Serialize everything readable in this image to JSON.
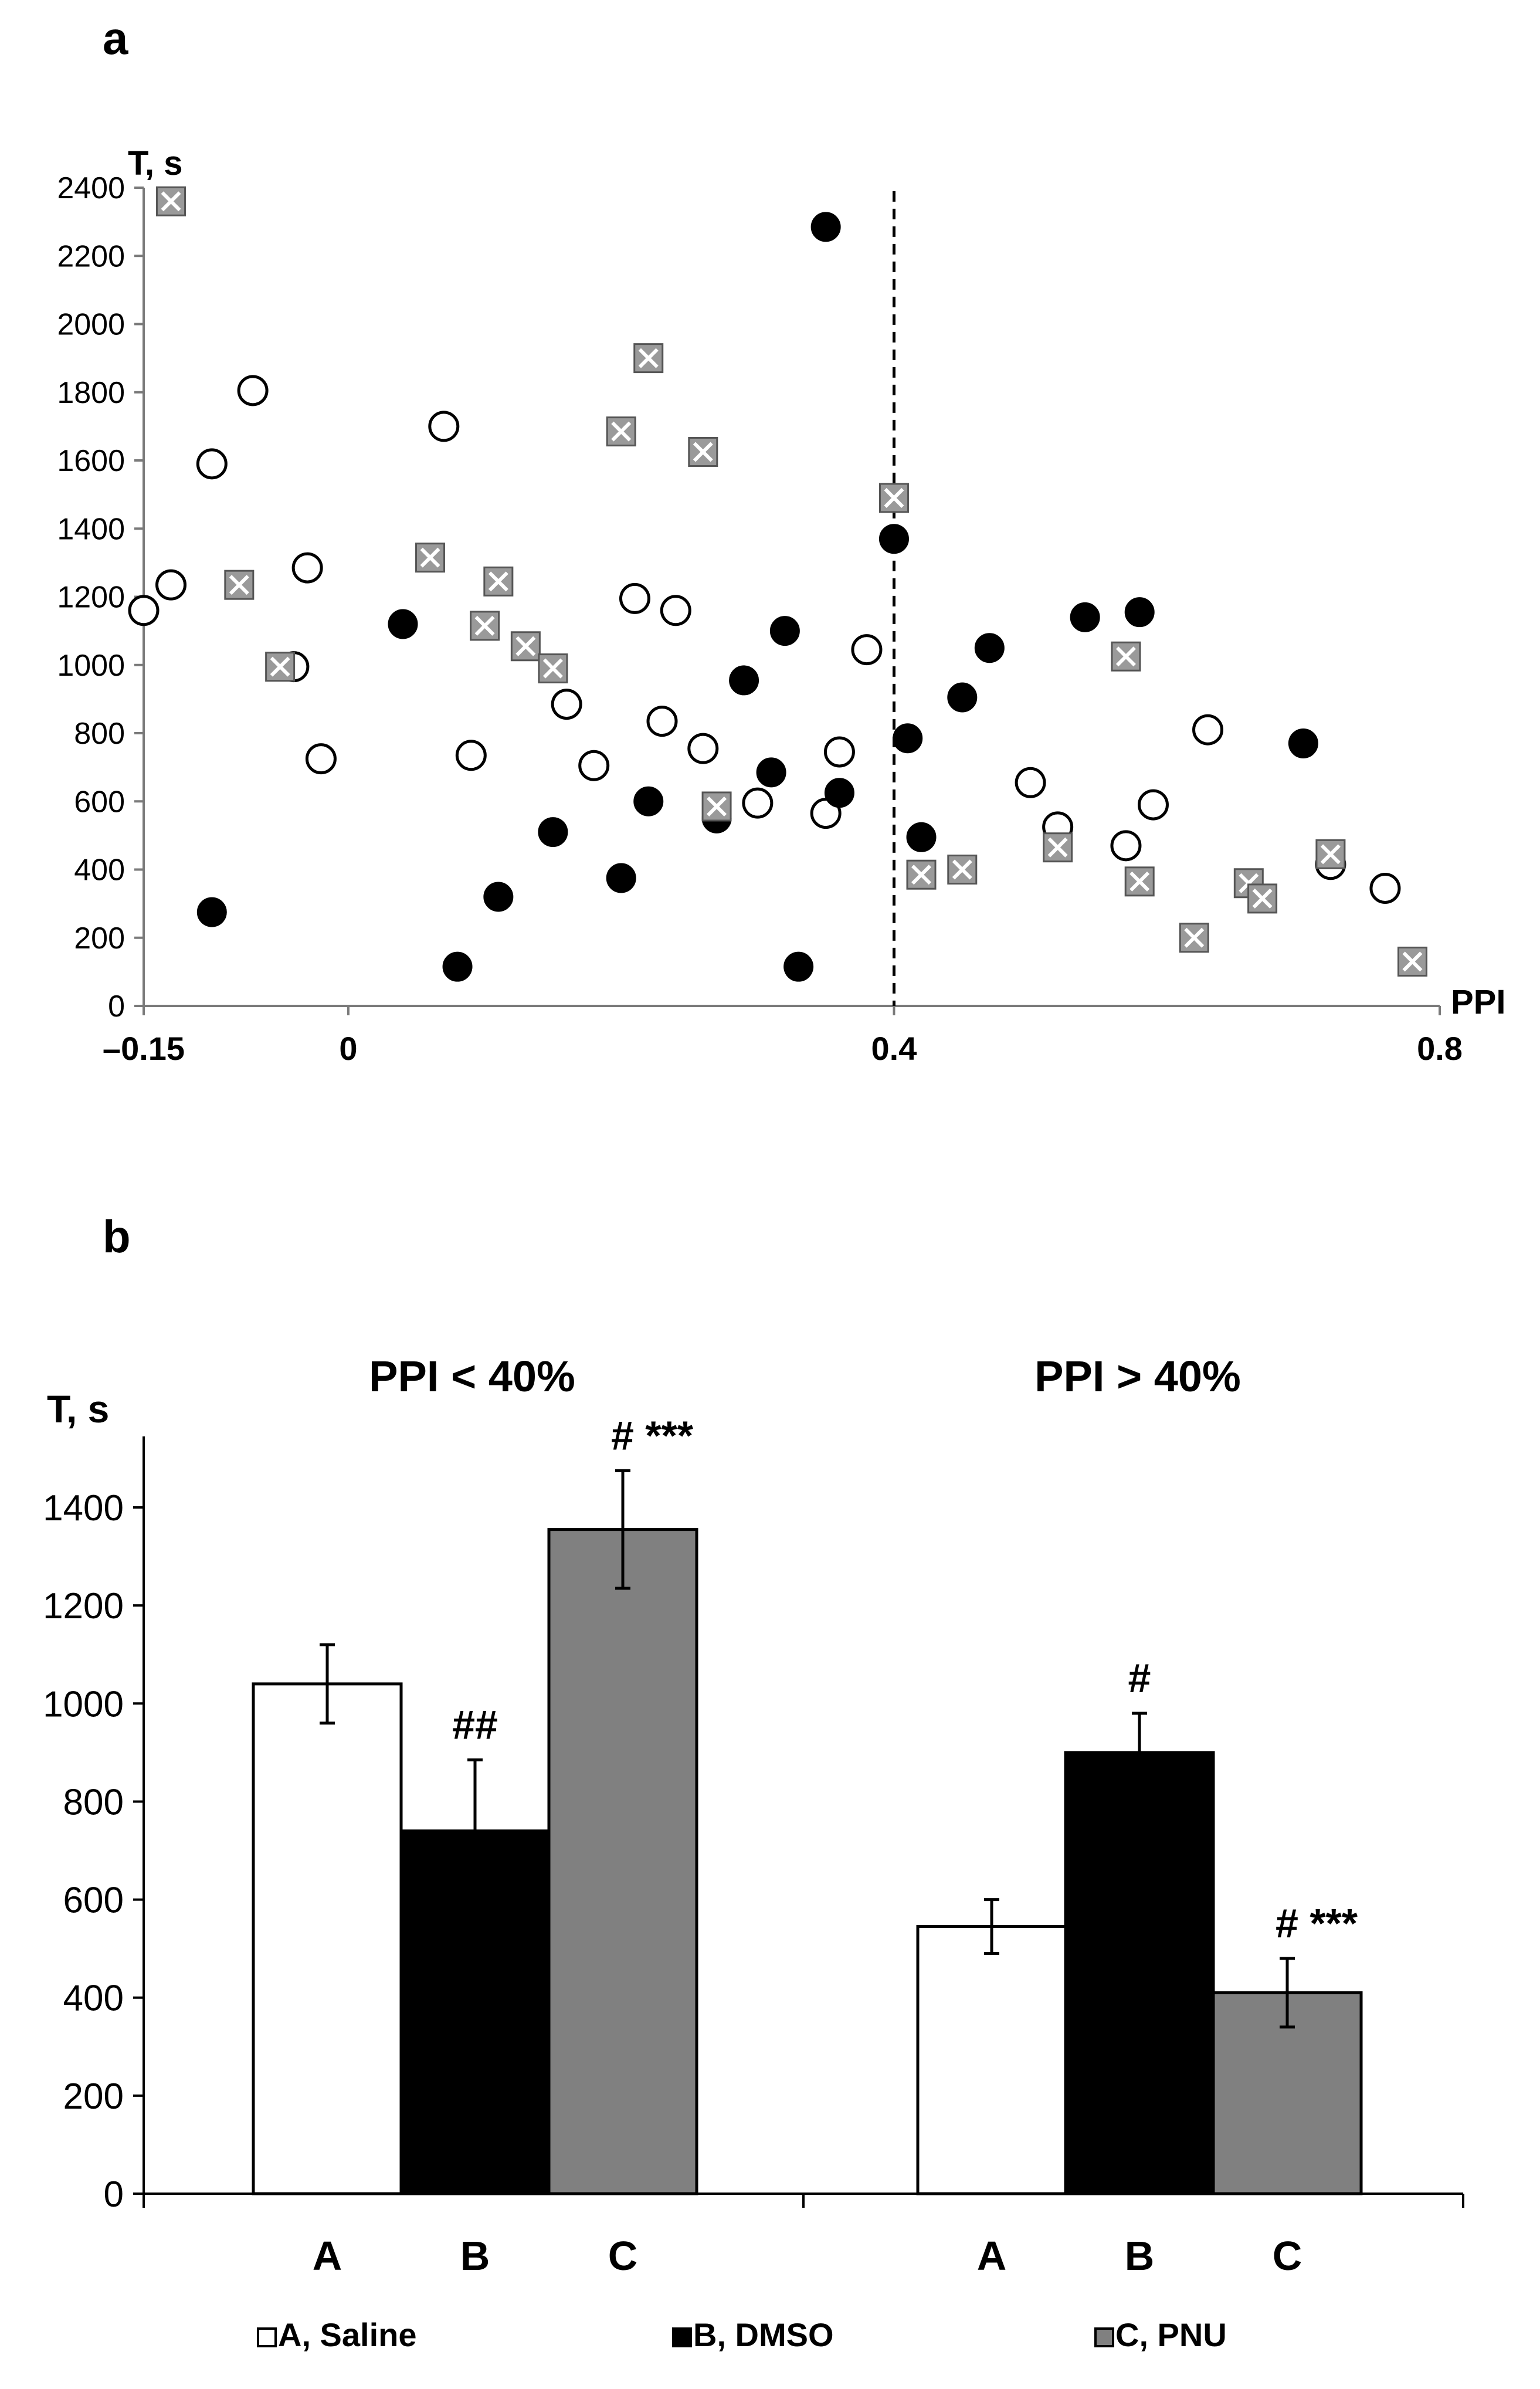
{
  "chart_data": [
    {
      "panel": "a",
      "type": "scatter",
      "ylabel": "T, s",
      "xlabel": "PPI",
      "xlim": [
        -0.15,
        0.8
      ],
      "ylim": [
        0,
        2400
      ],
      "x_ticks": [
        "–0.15",
        "0",
        "0.4",
        "0.8"
      ],
      "x_tick_values": [
        -0.15,
        0,
        0.4,
        0.8
      ],
      "y_ticks": [
        0,
        200,
        400,
        600,
        800,
        1000,
        1200,
        1400,
        1600,
        1800,
        2000,
        2200,
        2400
      ],
      "threshold_x": 0.4,
      "series": [
        {
          "name": "A, Saline",
          "marker": "open-circle",
          "points": [
            [
              -0.15,
              1160
            ],
            [
              -0.13,
              1235
            ],
            [
              -0.1,
              1590
            ],
            [
              -0.07,
              1805
            ],
            [
              -0.04,
              995
            ],
            [
              -0.03,
              1285
            ],
            [
              -0.02,
              725
            ],
            [
              0.07,
              1700
            ],
            [
              0.09,
              735
            ],
            [
              0.16,
              885
            ],
            [
              0.18,
              705
            ],
            [
              0.21,
              1195
            ],
            [
              0.23,
              835
            ],
            [
              0.24,
              1160
            ],
            [
              0.26,
              755
            ],
            [
              0.3,
              595
            ],
            [
              0.35,
              565
            ],
            [
              0.36,
              745
            ],
            [
              0.38,
              1045
            ],
            [
              0.5,
              655
            ],
            [
              0.52,
              525
            ],
            [
              0.57,
              470
            ],
            [
              0.59,
              590
            ],
            [
              0.63,
              810
            ],
            [
              0.72,
              415
            ],
            [
              0.76,
              345
            ]
          ]
        },
        {
          "name": "B, DMSO",
          "marker": "filled-circle",
          "points": [
            [
              -0.1,
              275
            ],
            [
              0.04,
              1120
            ],
            [
              0.08,
              115
            ],
            [
              0.11,
              320
            ],
            [
              0.15,
              510
            ],
            [
              0.2,
              375
            ],
            [
              0.22,
              600
            ],
            [
              0.27,
              550
            ],
            [
              0.29,
              955
            ],
            [
              0.31,
              685
            ],
            [
              0.32,
              1100
            ],
            [
              0.33,
              115
            ],
            [
              0.35,
              2285
            ],
            [
              0.36,
              625
            ],
            [
              0.4,
              1370
            ],
            [
              0.41,
              785
            ],
            [
              0.42,
              495
            ],
            [
              0.45,
              905
            ],
            [
              0.47,
              1050
            ],
            [
              0.54,
              1140
            ],
            [
              0.58,
              1155
            ],
            [
              0.7,
              770
            ]
          ]
        },
        {
          "name": "C, PNU",
          "marker": "crossed-square",
          "points": [
            [
              -0.13,
              2360
            ],
            [
              -0.08,
              1235
            ],
            [
              -0.05,
              995
            ],
            [
              0.06,
              1315
            ],
            [
              0.1,
              1115
            ],
            [
              0.11,
              1245
            ],
            [
              0.13,
              1055
            ],
            [
              0.15,
              990
            ],
            [
              0.2,
              1685
            ],
            [
              0.22,
              1900
            ],
            [
              0.26,
              1625
            ],
            [
              0.27,
              585
            ],
            [
              0.4,
              1490
            ],
            [
              0.42,
              385
            ],
            [
              0.45,
              400
            ],
            [
              0.52,
              465
            ],
            [
              0.57,
              1025
            ],
            [
              0.58,
              365
            ],
            [
              0.62,
              200
            ],
            [
              0.66,
              360
            ],
            [
              0.67,
              315
            ],
            [
              0.72,
              445
            ],
            [
              0.78,
              130
            ]
          ]
        }
      ]
    },
    {
      "panel": "b",
      "type": "bar",
      "ylabel": "T, s",
      "ylim": [
        0,
        1550
      ],
      "y_ticks": [
        0,
        200,
        400,
        600,
        800,
        1000,
        1200,
        1400
      ],
      "groups": [
        {
          "title": "PPI < 40%",
          "bars": [
            {
              "category": "A",
              "value": 1040,
              "error": 80,
              "annotation": ""
            },
            {
              "category": "B",
              "value": 740,
              "error": 145,
              "annotation": "##"
            },
            {
              "category": "C",
              "value": 1355,
              "error": 120,
              "annotation": "# ***"
            }
          ]
        },
        {
          "title": "PPI > 40%",
          "bars": [
            {
              "category": "A",
              "value": 545,
              "error": 55,
              "annotation": ""
            },
            {
              "category": "B",
              "value": 900,
              "error": 80,
              "annotation": "#"
            },
            {
              "category": "C",
              "value": 410,
              "error": 70,
              "annotation": "# ***"
            }
          ]
        }
      ],
      "legend": [
        {
          "label": "A, Saline",
          "color": "#ffffff"
        },
        {
          "label": "B, DMSO",
          "color": "#000000"
        },
        {
          "label": "C, PNU",
          "color": "#808080"
        }
      ]
    }
  ],
  "colors": {
    "saline": "#ffffff",
    "dmso": "#000000",
    "pnu": "#808080",
    "pnu_marker": "#9a9a9a"
  },
  "panel_labels": {
    "a": "a",
    "b": "b"
  }
}
